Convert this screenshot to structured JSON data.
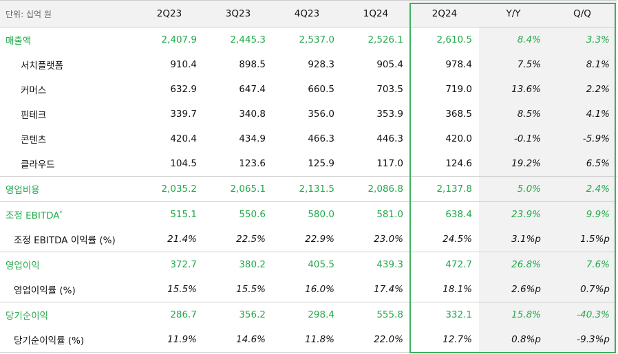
{
  "header": {
    "unit": "단위: 십억 원",
    "columns": [
      "2Q23",
      "3Q23",
      "4Q23",
      "1Q24",
      "2Q24",
      "Y/Y",
      "Q/Q"
    ]
  },
  "rows": [
    {
      "kind": "main",
      "label": "매출액",
      "values": [
        "2,407.9",
        "2,445.3",
        "2,537.0",
        "2,526.1",
        "2,610.5",
        "8.4%",
        "3.3%"
      ]
    },
    {
      "kind": "sub",
      "label": "서치플랫폼",
      "values": [
        "910.4",
        "898.5",
        "928.3",
        "905.4",
        "978.4",
        "7.5%",
        "8.1%"
      ]
    },
    {
      "kind": "sub",
      "label": "커머스",
      "values": [
        "632.9",
        "647.4",
        "660.5",
        "703.5",
        "719.0",
        "13.6%",
        "2.2%"
      ]
    },
    {
      "kind": "sub",
      "label": "핀테크",
      "values": [
        "339.7",
        "340.8",
        "356.0",
        "353.9",
        "368.5",
        "8.5%",
        "4.1%"
      ]
    },
    {
      "kind": "sub",
      "label": "콘텐츠",
      "values": [
        "420.4",
        "434.9",
        "466.3",
        "446.3",
        "420.0",
        "-0.1%",
        "-5.9%"
      ]
    },
    {
      "kind": "sub",
      "label": "클라우드",
      "values": [
        "104.5",
        "123.6",
        "125.9",
        "117.0",
        "124.6",
        "19.2%",
        "6.5%"
      ]
    },
    {
      "kind": "main",
      "label": "영업비용",
      "values": [
        "2,035.2",
        "2,065.1",
        "2,131.5",
        "2,086.8",
        "2,137.8",
        "5.0%",
        "2.4%"
      ]
    },
    {
      "kind": "main",
      "label": "조정 EBITDA",
      "label_mark": "*",
      "values": [
        "515.1",
        "550.6",
        "580.0",
        "581.0",
        "638.4",
        "23.9%",
        "9.9%"
      ]
    },
    {
      "kind": "ratio",
      "label": "조정 EBITDA 이익률 (%)",
      "values": [
        "21.4%",
        "22.5%",
        "22.9%",
        "23.0%",
        "24.5%",
        "3.1%p",
        "1.5%p"
      ]
    },
    {
      "kind": "main",
      "label": "영업이익",
      "values": [
        "372.7",
        "380.2",
        "405.5",
        "439.3",
        "472.7",
        "26.8%",
        "7.6%"
      ]
    },
    {
      "kind": "ratio",
      "label": "영업이익률 (%)",
      "values": [
        "15.5%",
        "15.5%",
        "16.0%",
        "17.4%",
        "18.1%",
        "2.6%p",
        "0.7%p"
      ]
    },
    {
      "kind": "main",
      "label": "당기순이익",
      "values": [
        "286.7",
        "356.2",
        "298.4",
        "555.8",
        "332.1",
        "15.8%",
        "-40.3%"
      ]
    },
    {
      "kind": "ratio",
      "label": "당기순이익률 (%)",
      "values": [
        "11.9%",
        "14.6%",
        "11.8%",
        "22.0%",
        "12.7%",
        "0.8%p",
        "-9.3%p"
      ]
    }
  ]
}
